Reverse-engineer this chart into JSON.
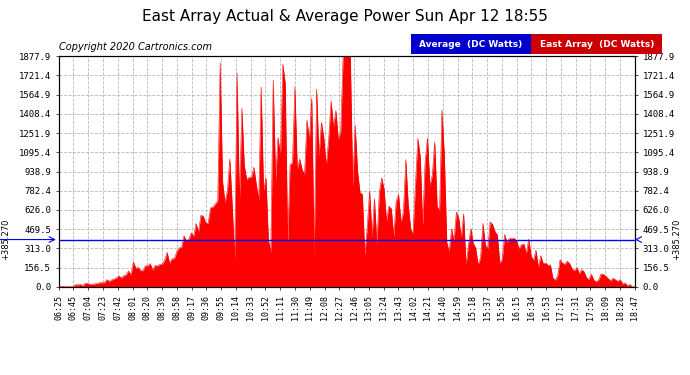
{
  "title": "East Array Actual & Average Power Sun Apr 12 18:55",
  "copyright": "Copyright 2020 Cartronics.com",
  "legend_labels": [
    "Average  (DC Watts)",
    "East Array  (DC Watts)"
  ],
  "avg_value": 385.27,
  "avg_label": "+385.270",
  "ymax": 1877.9,
  "yticks": [
    0.0,
    156.5,
    313.0,
    469.5,
    626.0,
    782.4,
    938.9,
    1095.4,
    1251.9,
    1408.4,
    1564.9,
    1721.4,
    1877.9
  ],
  "background_color": "#ffffff",
  "grid_color": "#b0b0b0",
  "fill_color": "#ff0000",
  "avg_line_color": "#0000ff",
  "title_fontsize": 11,
  "copyright_fontsize": 7,
  "tick_fontsize": 6.5,
  "x_tick_labels": [
    "06:25",
    "06:45",
    "07:04",
    "07:23",
    "07:42",
    "08:01",
    "08:20",
    "08:39",
    "08:58",
    "09:17",
    "09:36",
    "09:55",
    "10:14",
    "10:33",
    "10:52",
    "11:11",
    "11:30",
    "11:49",
    "12:08",
    "12:27",
    "12:46",
    "13:05",
    "13:24",
    "13:43",
    "14:02",
    "14:21",
    "14:40",
    "14:59",
    "15:18",
    "15:37",
    "15:56",
    "16:15",
    "16:34",
    "16:53",
    "17:12",
    "17:31",
    "17:50",
    "18:09",
    "18:28",
    "18:47"
  ],
  "num_points": 240,
  "seed": 42
}
